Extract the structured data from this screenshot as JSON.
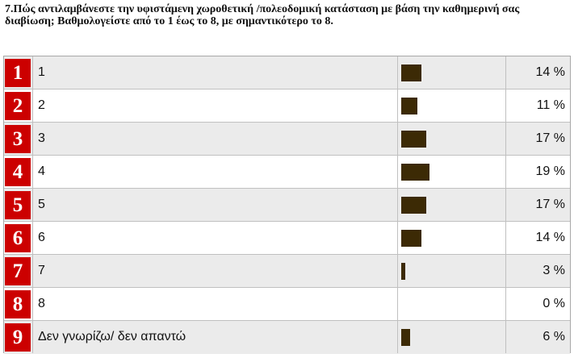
{
  "question": "7.Πώς αντιλαμβάνεστε την υφιστάμενη χωροθετική /πολεοδομική κατάσταση με βάση την καθημερινή σας διαβίωση; Βαθμολογείστε από το 1 έως το 8, με σημαντικότερο το 8.",
  "colors": {
    "number_badge": "#cc0000",
    "bar": "#3c2a05",
    "row_alt": "#ebebeb"
  },
  "chart_data": {
    "type": "bar",
    "orientation": "horizontal",
    "title": "7.Πώς αντιλαμβάνεστε την υφιστάμενη χωροθετική /πολεοδομική κατάσταση με βάση την καθημερινή σας διαβίωση; Βαθμολογείστε από το 1 έως το 8, με σημαντικότερο το 8.",
    "unit": "%",
    "grid": false,
    "rows": [
      {
        "index": "1",
        "label": "1",
        "value": 14,
        "value_text": "14 %"
      },
      {
        "index": "2",
        "label": "2",
        "value": 11,
        "value_text": "11 %"
      },
      {
        "index": "3",
        "label": "3",
        "value": 17,
        "value_text": "17 %"
      },
      {
        "index": "4",
        "label": "4",
        "value": 19,
        "value_text": "19 %"
      },
      {
        "index": "5",
        "label": "5",
        "value": 17,
        "value_text": "17 %"
      },
      {
        "index": "6",
        "label": "6",
        "value": 14,
        "value_text": "14 %"
      },
      {
        "index": "7",
        "label": "7",
        "value": 3,
        "value_text": "3 %"
      },
      {
        "index": "8",
        "label": "8",
        "value": 0,
        "value_text": "0 %"
      },
      {
        "index": "9",
        "label": "Δεν γνωρίζω/ δεν απαντώ",
        "value": 6,
        "value_text": "6 %"
      }
    ]
  }
}
